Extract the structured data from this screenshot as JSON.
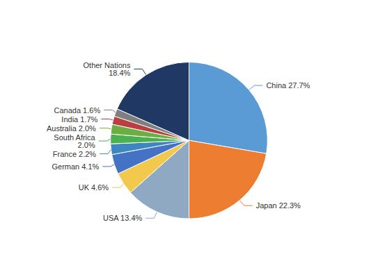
{
  "chart_data": {
    "type": "pie",
    "categories": [
      "China",
      "Japan",
      "USA",
      "UK",
      "German",
      "France",
      "South Africa",
      "Australia",
      "India",
      "Canada",
      "Other Nations"
    ],
    "values": [
      27.7,
      22.3,
      13.4,
      4.6,
      4.1,
      2.2,
      2.0,
      2.0,
      1.7,
      1.6,
      18.4
    ],
    "value_labels": [
      "China 27.7%",
      "Japan 22.3%",
      "USA 13.4%",
      "UK 4.6%",
      "German 4.1%",
      "France 2.2%",
      "South Africa\n2.0%",
      "Australia 2.0%",
      "India 1.7%",
      "Canada 1.6%",
      "Other Nations\n18.4%"
    ],
    "colors": [
      "#5B9BD5",
      "#ED7D31",
      "#8EA9C1",
      "#F2C94C",
      "#4472C4",
      "#3E86C0",
      "#4CAF50",
      "#6DAE43",
      "#B94040",
      "#7F7F7F",
      "#1F3864"
    ],
    "data_labels": true
  }
}
